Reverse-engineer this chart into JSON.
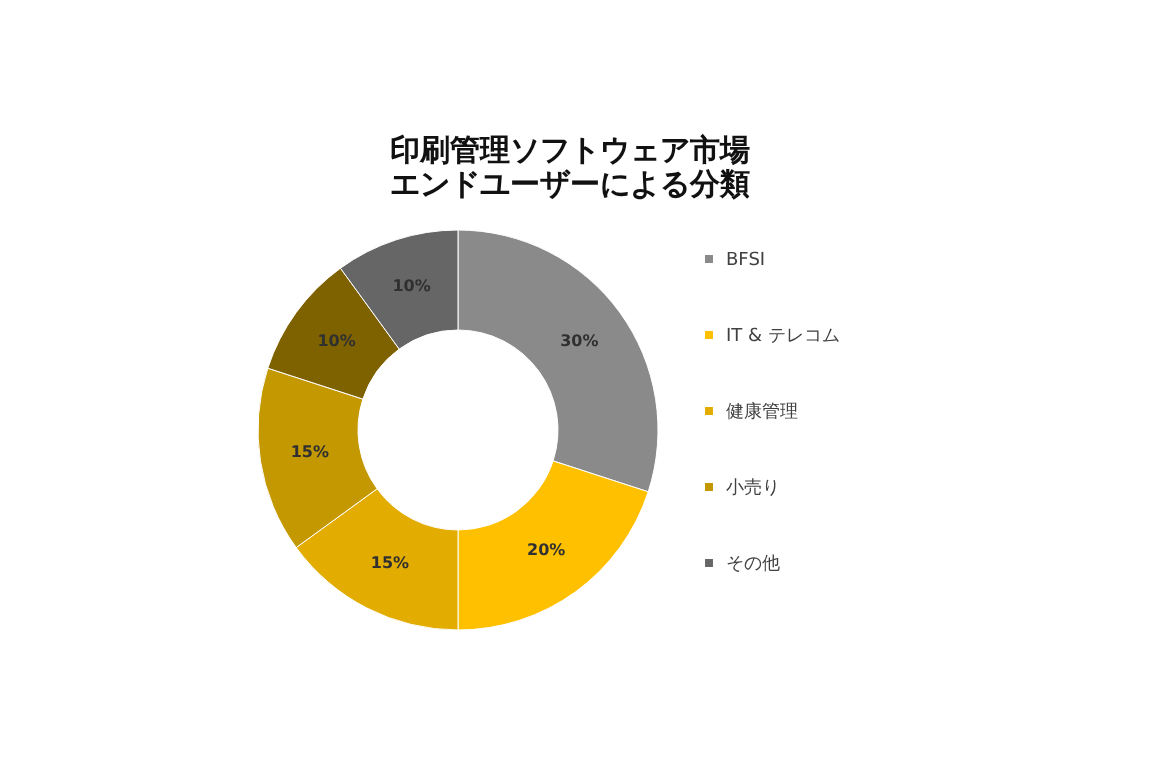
{
  "chart_data": {
    "type": "donut",
    "title": "印刷管理ソフトウェア市場エンドユーザーによる分類",
    "categories": [
      "BFSI",
      "IT & テレコム",
      "健康管理",
      "小売り",
      null,
      "その他"
    ],
    "values": [
      30,
      20,
      15,
      15,
      10,
      10
    ],
    "colors": [
      "#8a8a8a",
      "#ffc000",
      "#e2ac00",
      "#c49800",
      "#7f6200",
      "#666666"
    ],
    "value_labels": [
      "30%",
      "20%",
      "15%",
      "15%",
      "10%",
      "10%"
    ],
    "legend": "right"
  }
}
